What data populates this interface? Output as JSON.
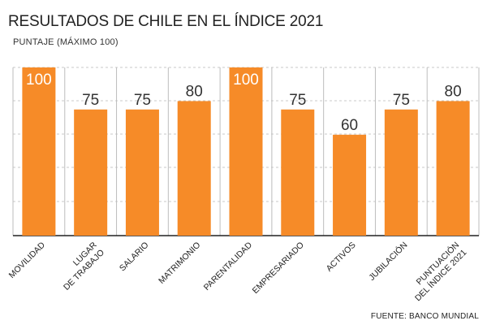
{
  "chart_data": {
    "type": "bar",
    "title": "RESULTADOS DE CHILE EN EL ÍNDICE 2021",
    "subtitle": "PUNTAJE (MÁXIMO 100)",
    "source": "FUENTE: BANCO MUNDIAL",
    "categories": [
      "MOVILIDAD",
      "LUGAR DE TRABAJO",
      "SALARIO",
      "MATRIMONIO",
      "PARENTALIDAD",
      "EMPRESARIADO",
      "ACTIVOS",
      "JUBILACIÓN",
      "PUNTUACIÓN DEL ÍNDICE 2021"
    ],
    "category_lines": [
      [
        "MOVILIDAD"
      ],
      [
        "LUGAR",
        "DE TRABAJO"
      ],
      [
        "SALARIO"
      ],
      [
        "MATRIMONIO"
      ],
      [
        "PARENTALIDAD"
      ],
      [
        "EMPRESARIADO"
      ],
      [
        "ACTIVOS"
      ],
      [
        "JUBILACIÓN"
      ],
      [
        "PUNTUACIÓN",
        "DEL ÍNDICE 2021"
      ]
    ],
    "values": [
      100,
      75,
      75,
      80,
      100,
      75,
      60,
      75,
      80
    ],
    "ylim": [
      0,
      100
    ],
    "grid": true,
    "bar_color": "#f68b28",
    "label_color_inside": "#ffffff",
    "label_color_outside": "#333333"
  }
}
